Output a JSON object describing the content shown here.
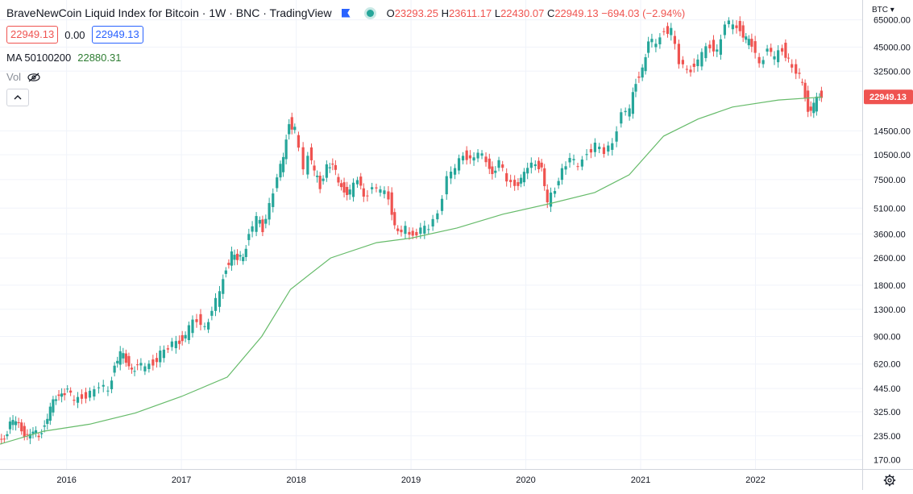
{
  "header": {
    "title": "BraveNewCoin Liquid Index for Bitcoin · 1W · BNC · TradingView",
    "ohlc": {
      "o_label": "O",
      "o": "23293.25",
      "h_label": "H",
      "h": "23611.17",
      "l_label": "L",
      "l": "22430.07",
      "c_label": "C",
      "c": "22949.13",
      "change": "−694.03 (−2.94%)"
    },
    "sell_price": "22949.13",
    "spread": "0.00",
    "buy_price": "22949.13",
    "ma_label": "MA 50100200",
    "ma_value": "22880.31",
    "vol_label": "Vol"
  },
  "axis": {
    "currency": "BTC",
    "price_tag": "22949.13"
  },
  "colors": {
    "up": "#26a69a",
    "down": "#ef5350",
    "ma": "#66bb6a",
    "grid": "#f0f3fa",
    "price_tag": "#ef5350"
  },
  "icons": {
    "flag": "flag-icon",
    "status": "status-dot-icon",
    "hide": "eye-off-icon",
    "collapse": "chevron-up-icon",
    "settings": "gear-icon"
  },
  "chart_data": {
    "type": "candlestick",
    "scale": "log",
    "ylim": [
      150,
      85000
    ],
    "y_ticks": [
      65000,
      45000,
      32500,
      22949.13,
      14500,
      10500,
      7500,
      5100,
      3600,
      2600,
      1800,
      1300,
      900,
      620,
      445,
      325,
      235,
      170
    ],
    "y_tick_labels": [
      "65000.00",
      "45000.00",
      "32500.00",
      "",
      "14500.00",
      "10500.00",
      "7500.00",
      "5100.00",
      "3600.00",
      "2600.00",
      "1800.00",
      "1300.00",
      "900.00",
      "620.00",
      "445.00",
      "325.00",
      "235.00",
      "170.00"
    ],
    "x_range": [
      2015.42,
      2022.93
    ],
    "x_ticks": [
      2016,
      2017,
      2018,
      2019,
      2020,
      2021,
      2022
    ],
    "x_tick_labels": [
      "2016",
      "2017",
      "2018",
      "2019",
      "2020",
      "2021",
      "2022"
    ],
    "grid": true,
    "price_close": [
      [
        2015.42,
        225
      ],
      [
        2015.47,
        235
      ],
      [
        2015.52,
        270
      ],
      [
        2015.57,
        285
      ],
      [
        2015.62,
        265
      ],
      [
        2015.67,
        230
      ],
      [
        2015.72,
        240
      ],
      [
        2015.77,
        245
      ],
      [
        2015.82,
        270
      ],
      [
        2015.87,
        330
      ],
      [
        2015.92,
        400
      ],
      [
        2015.97,
        430
      ],
      [
        2016.02,
        420
      ],
      [
        2016.08,
        380
      ],
      [
        2016.15,
        410
      ],
      [
        2016.22,
        415
      ],
      [
        2016.3,
        440
      ],
      [
        2016.38,
        460
      ],
      [
        2016.43,
        600
      ],
      [
        2016.48,
        700
      ],
      [
        2016.53,
        660
      ],
      [
        2016.58,
        590
      ],
      [
        2016.63,
        580
      ],
      [
        2016.7,
        610
      ],
      [
        2016.77,
        640
      ],
      [
        2016.83,
        710
      ],
      [
        2016.9,
        740
      ],
      [
        2016.97,
        900
      ],
      [
        2017.02,
        830
      ],
      [
        2017.08,
        1000
      ],
      [
        2017.15,
        1150
      ],
      [
        2017.22,
        1050
      ],
      [
        2017.28,
        1200
      ],
      [
        2017.35,
        1700
      ],
      [
        2017.4,
        2300
      ],
      [
        2017.45,
        2700
      ],
      [
        2017.5,
        2500
      ],
      [
        2017.55,
        2800
      ],
      [
        2017.6,
        3500
      ],
      [
        2017.67,
        4400
      ],
      [
        2017.72,
        3900
      ],
      [
        2017.78,
        5500
      ],
      [
        2017.85,
        7300
      ],
      [
        2017.9,
        10500
      ],
      [
        2017.95,
        16500
      ],
      [
        2018.0,
        14500
      ],
      [
        2018.04,
        11000
      ],
      [
        2018.08,
        8500
      ],
      [
        2018.12,
        11000
      ],
      [
        2018.17,
        8200
      ],
      [
        2018.22,
        7000
      ],
      [
        2018.28,
        9200
      ],
      [
        2018.33,
        8700
      ],
      [
        2018.38,
        7500
      ],
      [
        2018.43,
        6500
      ],
      [
        2018.48,
        6200
      ],
      [
        2018.55,
        7500
      ],
      [
        2018.6,
        6300
      ],
      [
        2018.68,
        6500
      ],
      [
        2018.75,
        6400
      ],
      [
        2018.82,
        6100
      ],
      [
        2018.87,
        4000
      ],
      [
        2018.93,
        3500
      ],
      [
        2018.97,
        3800
      ],
      [
        2019.03,
        3600
      ],
      [
        2019.1,
        3700
      ],
      [
        2019.17,
        3900
      ],
      [
        2019.25,
        5000
      ],
      [
        2019.33,
        7500
      ],
      [
        2019.4,
        8600
      ],
      [
        2019.47,
        11000
      ],
      [
        2019.53,
        9800
      ],
      [
        2019.6,
        10300
      ],
      [
        2019.67,
        10000
      ],
      [
        2019.72,
        8200
      ],
      [
        2019.78,
        9200
      ],
      [
        2019.85,
        7500
      ],
      [
        2019.92,
        7200
      ],
      [
        2019.97,
        7300
      ],
      [
        2020.03,
        8700
      ],
      [
        2020.1,
        9800
      ],
      [
        2020.15,
        8600
      ],
      [
        2020.2,
        5300
      ],
      [
        2020.27,
        6800
      ],
      [
        2020.33,
        8800
      ],
      [
        2020.4,
        9500
      ],
      [
        2020.47,
        9200
      ],
      [
        2020.55,
        11000
      ],
      [
        2020.62,
        11700
      ],
      [
        2020.7,
        10600
      ],
      [
        2020.77,
        13000
      ],
      [
        2020.85,
        18000
      ],
      [
        2020.92,
        19000
      ],
      [
        2020.97,
        29000
      ],
      [
        2021.03,
        34000
      ],
      [
        2021.08,
        46000
      ],
      [
        2021.15,
        49000
      ],
      [
        2021.22,
        57000
      ],
      [
        2021.28,
        55000
      ],
      [
        2021.35,
        36000
      ],
      [
        2021.42,
        35000
      ],
      [
        2021.48,
        33000
      ],
      [
        2021.55,
        41000
      ],
      [
        2021.62,
        47000
      ],
      [
        2021.68,
        43000
      ],
      [
        2021.75,
        58000
      ],
      [
        2021.82,
        64000
      ],
      [
        2021.88,
        57000
      ],
      [
        2021.93,
        49000
      ],
      [
        2021.98,
        46000
      ],
      [
        2022.05,
        38000
      ],
      [
        2022.12,
        42000
      ],
      [
        2022.18,
        39000
      ],
      [
        2022.25,
        45000
      ],
      [
        2022.3,
        38000
      ],
      [
        2022.37,
        30000
      ],
      [
        2022.42,
        29500
      ],
      [
        2022.47,
        19000
      ],
      [
        2022.52,
        20000
      ],
      [
        2022.57,
        23600
      ],
      [
        2022.58,
        22949.13
      ]
    ],
    "series": [
      {
        "name": "",
        "values": [
          [
            2015.42,
            210
          ],
          [
            2015.8,
            250
          ],
          [
            2016.2,
            275
          ],
          [
            2016.6,
            320
          ],
          [
            2017.0,
            400
          ],
          [
            2017.4,
            520
          ],
          [
            2017.7,
            900
          ],
          [
            2017.95,
            1700
          ],
          [
            2018.3,
            2600
          ],
          [
            2018.7,
            3200
          ],
          [
            2019.0,
            3400
          ],
          [
            2019.4,
            3900
          ],
          [
            2019.8,
            4700
          ],
          [
            2020.2,
            5400
          ],
          [
            2020.6,
            6300
          ],
          [
            2020.9,
            8000
          ],
          [
            2021.2,
            13500
          ],
          [
            2021.5,
            17000
          ],
          [
            2021.8,
            20000
          ],
          [
            2022.2,
            22000
          ],
          [
            2022.58,
            22880
          ]
        ]
      }
    ]
  }
}
